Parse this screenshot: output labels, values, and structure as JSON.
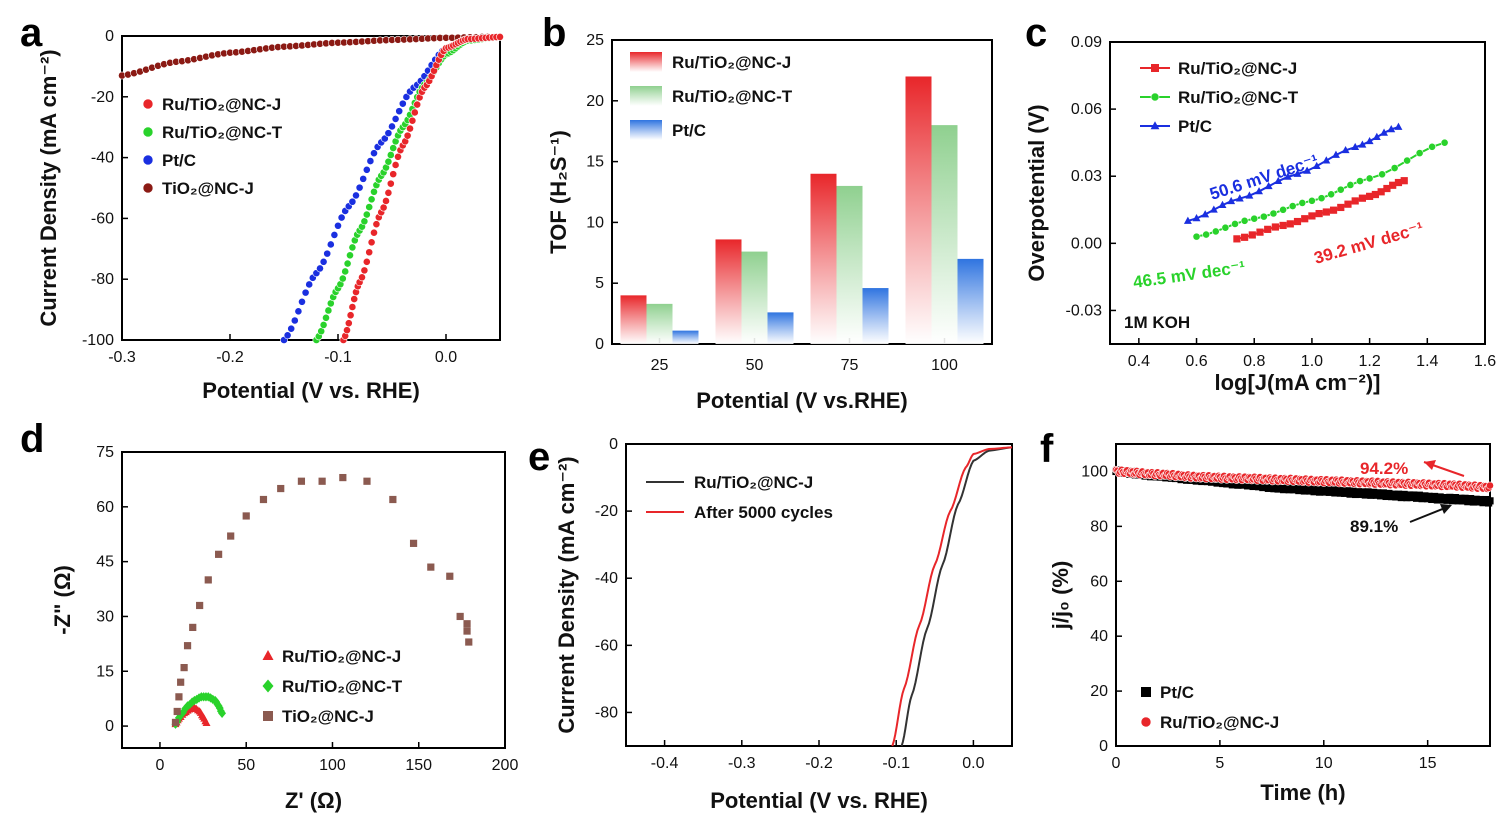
{
  "chart_data": [
    {
      "panel": "a",
      "type": "scatter",
      "xlabel": "Potential (V vs. RHE)",
      "ylabel": "Current Density (mA cm⁻²)",
      "xlim": [
        -0.3,
        0.05
      ],
      "ylim": [
        -100,
        0
      ],
      "xticks": [
        "-0.3",
        "-0.2",
        "-0.1",
        "0.0"
      ],
      "yticks": [
        "0",
        "-20",
        "-40",
        "-60",
        "-80",
        "-100"
      ],
      "grid": false,
      "legend": "left",
      "series": [
        {
          "name": "Ru/TiO₂@NC-J",
          "color": "#e8262a",
          "marker": "circle",
          "x": [
            -0.095,
            -0.08,
            -0.06,
            -0.04,
            -0.02,
            0.0,
            0.02,
            0.05
          ],
          "y": [
            -100,
            -81,
            -58,
            -36,
            -17,
            -4,
            -1,
            -0.3
          ]
        },
        {
          "name": "Ru/TiO₂@NC-T",
          "color": "#29d22b",
          "marker": "circle",
          "x": [
            -0.12,
            -0.1,
            -0.08,
            -0.06,
            -0.04,
            -0.02,
            0.0,
            0.02,
            0.05
          ],
          "y": [
            -100,
            -83,
            -64,
            -46,
            -30,
            -16,
            -6,
            -1.5,
            -0.3
          ]
        },
        {
          "name": "Pt/C",
          "color": "#1a2fe0",
          "marker": "circle",
          "x": [
            -0.15,
            -0.12,
            -0.09,
            -0.06,
            -0.03,
            0.0,
            0.02,
            0.05
          ],
          "y": [
            -100,
            -78,
            -56,
            -35,
            -17,
            -4,
            -1,
            -0.3
          ]
        },
        {
          "name": "TiO₂@NC-J",
          "color": "#8b1a14",
          "marker": "circle",
          "x": [
            -0.3,
            -0.25,
            -0.2,
            -0.15,
            -0.1,
            -0.05,
            0.0,
            0.05
          ],
          "y": [
            -13,
            -8.5,
            -5.5,
            -3.5,
            -2.2,
            -1.3,
            -0.6,
            -0.2
          ]
        }
      ]
    },
    {
      "panel": "b",
      "type": "bar",
      "xlabel": "Potential (V vs.RHE)",
      "ylabel": "TOF (H₂S⁻¹)",
      "ylim": [
        0,
        25
      ],
      "yticks": [
        "0",
        "5",
        "10",
        "15",
        "20",
        "25"
      ],
      "categories": [
        "25",
        "50",
        "75",
        "100"
      ],
      "legend": "top-left",
      "series": [
        {
          "name": "Ru/TiO₂@NC-J",
          "color": "#e8262a",
          "values": [
            4.0,
            8.6,
            14.0,
            22.0
          ]
        },
        {
          "name": "Ru/TiO₂@NC-T",
          "color": "#8fd08f",
          "values": [
            3.3,
            7.6,
            13.0,
            18.0
          ]
        },
        {
          "name": "Pt/C",
          "color": "#2f74e0",
          "values": [
            1.1,
            2.6,
            4.6,
            7.0
          ]
        }
      ]
    },
    {
      "panel": "c",
      "type": "line",
      "xlabel": "log[J(mA cm⁻²)]",
      "ylabel": "Overpotential (V)",
      "xlim": [
        0.3,
        1.6
      ],
      "ylim": [
        -0.045,
        0.09
      ],
      "xticks": [
        "0.4",
        "0.6",
        "0.8",
        "1.0",
        "1.2",
        "1.4",
        "1.6"
      ],
      "yticks": [
        "0.09",
        "0.06",
        "0.03",
        "0.00",
        "-0.03"
      ],
      "legend": "top-left",
      "condition": "1M KOH",
      "series": [
        {
          "name": "Ru/TiO₂@NC-J",
          "color": "#e8262a",
          "marker": "square",
          "x": [
            0.74,
            0.9,
            1.05,
            1.2,
            1.32
          ],
          "y": [
            0.002,
            0.008,
            0.014,
            0.021,
            0.028
          ],
          "slope": "39.2 mV dec⁻¹"
        },
        {
          "name": "Ru/TiO₂@NC-T",
          "color": "#29d22b",
          "marker": "circle",
          "x": [
            0.6,
            0.8,
            1.0,
            1.2,
            1.46
          ],
          "y": [
            0.003,
            0.011,
            0.019,
            0.029,
            0.045
          ],
          "slope": "46.5 mV dec⁻¹"
        },
        {
          "name": "Pt/C",
          "color": "#1a2fe0",
          "marker": "triangle",
          "x": [
            0.57,
            0.75,
            0.95,
            1.15,
            1.3
          ],
          "y": [
            0.01,
            0.02,
            0.031,
            0.043,
            0.052
          ],
          "slope": "50.6 mV dec⁻¹"
        }
      ]
    },
    {
      "panel": "d",
      "type": "scatter",
      "xlabel": "Z' (Ω)",
      "ylabel": "-Z\" (Ω)",
      "xlim": [
        -22,
        200
      ],
      "ylim": [
        -6,
        75
      ],
      "xticks": [
        "0",
        "50",
        "100",
        "150",
        "200"
      ],
      "yticks": [
        "0",
        "15",
        "30",
        "45",
        "60",
        "75"
      ],
      "legend": "bottom-right",
      "series": [
        {
          "name": "Ru/TiO₂@NC-J",
          "color": "#e8262a",
          "marker": "triangle",
          "x": [
            9,
            11,
            14,
            17,
            20,
            23,
            25,
            27
          ],
          "y": [
            0.5,
            2,
            3.5,
            4.5,
            5,
            4,
            2.5,
            0.8
          ]
        },
        {
          "name": "Ru/TiO₂@NC-T",
          "color": "#29d22b",
          "marker": "diamond",
          "x": [
            9,
            12,
            16,
            20,
            24,
            28,
            32,
            34,
            36
          ],
          "y": [
            0.5,
            3,
            5.5,
            7,
            8,
            8,
            7,
            5.5,
            3.5
          ]
        },
        {
          "name": "TiO₂@NC-J",
          "color": "#8b5a50",
          "marker": "square",
          "x": [
            9,
            10,
            11,
            12,
            14,
            16,
            19,
            23,
            28,
            34,
            41,
            50,
            60,
            70,
            82,
            94,
            106,
            120,
            135,
            147,
            157,
            168,
            174,
            178,
            179,
            178
          ],
          "y": [
            1,
            4,
            8,
            12,
            16,
            22,
            27,
            33,
            40,
            47,
            52,
            57.5,
            62,
            65,
            67,
            67,
            68,
            67,
            62,
            50,
            43.5,
            41,
            30,
            26,
            23,
            28
          ]
        }
      ]
    },
    {
      "panel": "e",
      "type": "line",
      "xlabel": "Potential (V vs. RHE)",
      "ylabel": "Current Density (mA cm⁻²)",
      "xlim": [
        -0.45,
        0.05
      ],
      "ylim": [
        -90,
        0
      ],
      "xticks": [
        "-0.4",
        "-0.3",
        "-0.2",
        "-0.1",
        "0.0"
      ],
      "yticks": [
        "0",
        "-20",
        "-40",
        "-60",
        "-80"
      ],
      "legend": "top-left",
      "series": [
        {
          "name": "Ru/TiO₂@NC-J",
          "color": "#333333",
          "x": [
            -0.093,
            -0.08,
            -0.06,
            -0.04,
            -0.02,
            0.0,
            0.02,
            0.05
          ],
          "y": [
            -90,
            -75,
            -55,
            -36,
            -18,
            -5,
            -2,
            -1
          ]
        },
        {
          "name": "After 5000 cycles",
          "color": "#e8262a",
          "x": [
            -0.105,
            -0.09,
            -0.07,
            -0.05,
            -0.03,
            -0.01,
            0.0,
            0.02,
            0.05
          ],
          "y": [
            -90,
            -73,
            -54,
            -36,
            -20,
            -7,
            -3,
            -1.5,
            -1
          ]
        }
      ]
    },
    {
      "panel": "f",
      "type": "line",
      "xlabel": "Time (h)",
      "ylabel": "j/j₀ (%)",
      "xlim": [
        0,
        18
      ],
      "ylim": [
        0,
        110
      ],
      "xticks": [
        "0",
        "5",
        "10",
        "15"
      ],
      "yticks": [
        "0",
        "20",
        "40",
        "60",
        "80",
        "100"
      ],
      "legend": "bottom-left",
      "series": [
        {
          "name": "Pt/C",
          "color": "#000000",
          "x": [
            0,
            2,
            4,
            6,
            8,
            10,
            12,
            14,
            16,
            18
          ],
          "y": [
            100,
            98.5,
            97,
            95.5,
            94,
            93,
            92,
            91,
            90,
            89.1
          ],
          "retention": "89.1%"
        },
        {
          "name": "Ru/TiO₂@NC-J",
          "color": "#e8262a",
          "x": [
            0,
            2,
            4,
            6,
            8,
            10,
            12,
            14,
            16,
            18
          ],
          "y": [
            100,
            99,
            98,
            97.5,
            97,
            96.5,
            96,
            95.5,
            95,
            94.2
          ],
          "retention": "94.2%"
        }
      ]
    }
  ],
  "panel_labels": [
    "a",
    "b",
    "c",
    "d",
    "e",
    "f"
  ]
}
